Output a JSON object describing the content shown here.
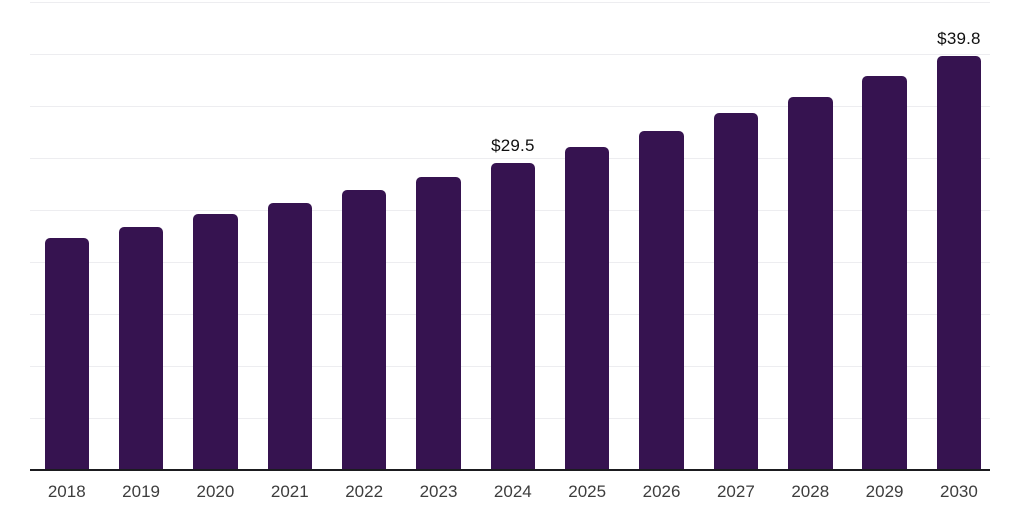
{
  "chart_data": {
    "type": "bar",
    "title": "",
    "xlabel": "",
    "ylabel": "",
    "categories": [
      "2018",
      "2019",
      "2020",
      "2021",
      "2022",
      "2023",
      "2024",
      "2025",
      "2026",
      "2027",
      "2028",
      "2029",
      "2030"
    ],
    "values": [
      22.3,
      23.4,
      24.6,
      25.7,
      26.9,
      28.2,
      29.5,
      31.1,
      32.6,
      34.3,
      35.9,
      37.9,
      39.8
    ],
    "value_labels": [
      "",
      "",
      "",
      "",
      "",
      "",
      "$29.5",
      "",
      "",
      "",
      "",
      "",
      "$39.8"
    ],
    "ylim": [
      0,
      45
    ],
    "gridline_step": 5,
    "grid": true,
    "legend": false,
    "y_axis_tick_labels_visible": false,
    "colors": {
      "bar": "#361350",
      "gridline": "#ededf0",
      "axis_line": "#1b1b1f",
      "x_tick_label": "#3d3d3d",
      "value_label": "#101010",
      "background": "#ffffff"
    }
  }
}
